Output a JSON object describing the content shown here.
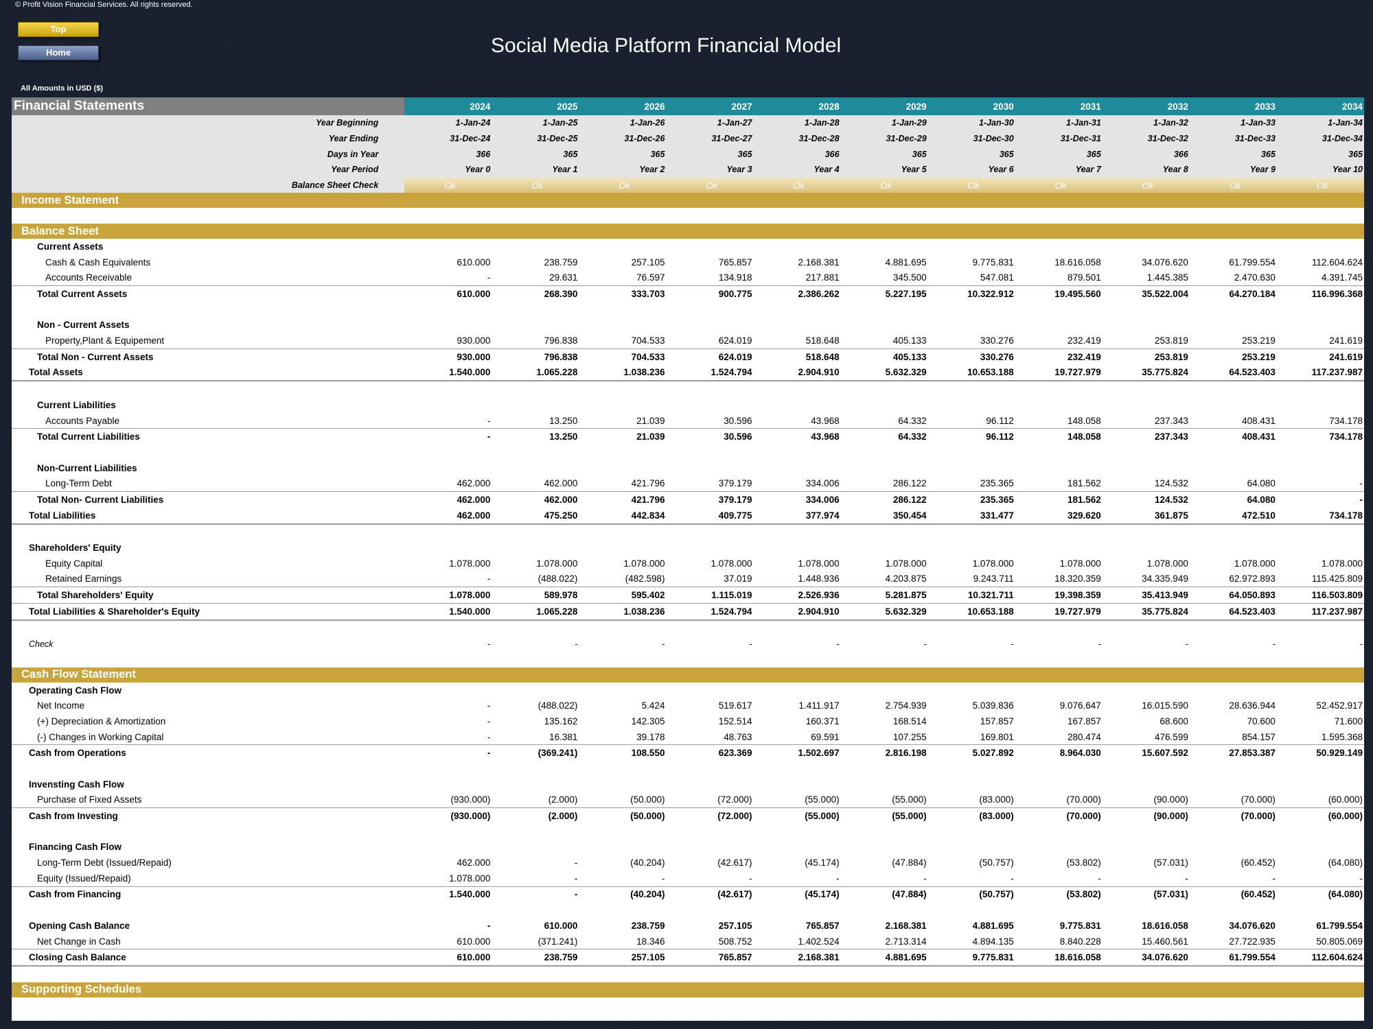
{
  "copyright": "© Profit Vision Financial Services. All rights reserved.",
  "buttons": {
    "top": "Top",
    "home": "Home"
  },
  "title": "Social Media Platform Financial Model",
  "amounts_note": "All Amounts in  USD ($)",
  "header": {
    "label": "Financial Statements",
    "years": [
      "2024",
      "2025",
      "2026",
      "2027",
      "2028",
      "2029",
      "2030",
      "2031",
      "2032",
      "2033",
      "2034"
    ]
  },
  "meta": [
    {
      "label": "Year Beginning",
      "values": [
        "1-Jan-24",
        "1-Jan-25",
        "1-Jan-26",
        "1-Jan-27",
        "1-Jan-28",
        "1-Jan-29",
        "1-Jan-30",
        "1-Jan-31",
        "1-Jan-32",
        "1-Jan-33",
        "1-Jan-34"
      ]
    },
    {
      "label": "Year Ending",
      "values": [
        "31-Dec-24",
        "31-Dec-25",
        "31-Dec-26",
        "31-Dec-27",
        "31-Dec-28",
        "31-Dec-29",
        "31-Dec-30",
        "31-Dec-31",
        "31-Dec-32",
        "31-Dec-33",
        "31-Dec-34"
      ]
    },
    {
      "label": "Days in Year",
      "values": [
        "366",
        "365",
        "365",
        "365",
        "366",
        "365",
        "365",
        "365",
        "366",
        "365",
        "365"
      ]
    },
    {
      "label": "Year Period",
      "values": [
        "Year 0",
        "Year 1",
        "Year 2",
        "Year 3",
        "Year 4",
        "Year 5",
        "Year 6",
        "Year 7",
        "Year 8",
        "Year 9",
        "Year 10"
      ]
    }
  ],
  "balance_check": {
    "label": "Balance Sheet Check",
    "values": [
      "Ok",
      "Ok",
      "Ok",
      "Ok",
      "Ok",
      "Ok",
      "Ok",
      "Ok",
      "Ok",
      "Ok",
      "Ok"
    ]
  },
  "sections": {
    "income": "Income Statement",
    "balance": "Balance Sheet",
    "cashflow": "Cash Flow Statement",
    "supporting": "Supporting Schedules"
  },
  "bs": {
    "current_assets": "Current Assets",
    "cash": {
      "label": "Cash & Cash Equivalents",
      "values": [
        "610.000",
        "238.759",
        "257.105",
        "765.857",
        "2.168.381",
        "4.881.695",
        "9.775.831",
        "18.616.058",
        "34.076.620",
        "61.799.554",
        "112.604.624"
      ]
    },
    "ar": {
      "label": "Accounts Receivable",
      "values": [
        "-",
        "29.631",
        "76.597",
        "134.918",
        "217.881",
        "345.500",
        "547.081",
        "879.501",
        "1.445.385",
        "2.470.630",
        "4.391.745"
      ]
    },
    "total_ca": {
      "label": "Total Current Assets",
      "values": [
        "610.000",
        "268.390",
        "333.703",
        "900.775",
        "2.386.262",
        "5.227.195",
        "10.322.912",
        "19.495.560",
        "35.522.004",
        "64.270.184",
        "116.996.368"
      ]
    },
    "non_current_assets": "Non - Current Assets",
    "ppe": {
      "label": "Property,Plant & Equipement",
      "values": [
        "930.000",
        "796.838",
        "704.533",
        "624.019",
        "518.648",
        "405.133",
        "330.276",
        "232.419",
        "253.819",
        "253.219",
        "241.619"
      ]
    },
    "total_nca": {
      "label": "Total Non - Current Assets",
      "values": [
        "930.000",
        "796.838",
        "704.533",
        "624.019",
        "518.648",
        "405.133",
        "330.276",
        "232.419",
        "253.819",
        "253.219",
        "241.619"
      ]
    },
    "total_assets": {
      "label": "Total Assets",
      "values": [
        "1.540.000",
        "1.065.228",
        "1.038.236",
        "1.524.794",
        "2.904.910",
        "5.632.329",
        "10.653.188",
        "19.727.979",
        "35.775.824",
        "64.523.403",
        "117.237.987"
      ]
    },
    "current_liabilities": "Current Liabilities",
    "ap": {
      "label": "Accounts Payable",
      "values": [
        "-",
        "13.250",
        "21.039",
        "30.596",
        "43.968",
        "64.332",
        "96.112",
        "148.058",
        "237.343",
        "408.431",
        "734.178"
      ]
    },
    "total_cl": {
      "label": "Total Current Liabilities",
      "values": [
        "-",
        "13.250",
        "21.039",
        "30.596",
        "43.968",
        "64.332",
        "96.112",
        "148.058",
        "237.343",
        "408.431",
        "734.178"
      ]
    },
    "non_current_liabilities": "Non-Current Liabilities",
    "ltd": {
      "label": "Long-Term Debt",
      "values": [
        "462.000",
        "462.000",
        "421.796",
        "379.179",
        "334.006",
        "286.122",
        "235.365",
        "181.562",
        "124.532",
        "64.080",
        "-"
      ]
    },
    "total_ncl": {
      "label": "Total Non- Current Liabilities",
      "values": [
        "462.000",
        "462.000",
        "421.796",
        "379.179",
        "334.006",
        "286.122",
        "235.365",
        "181.562",
        "124.532",
        "64.080",
        "-"
      ]
    },
    "total_liabilities": {
      "label": "Total Liabilities",
      "values": [
        "462.000",
        "475.250",
        "442.834",
        "409.775",
        "377.974",
        "350.454",
        "331.477",
        "329.620",
        "361.875",
        "472.510",
        "734.178"
      ]
    },
    "equity": "Shareholders' Equity",
    "equity_capital": {
      "label": "Equity Capital",
      "values": [
        "1.078.000",
        "1.078.000",
        "1.078.000",
        "1.078.000",
        "1.078.000",
        "1.078.000",
        "1.078.000",
        "1.078.000",
        "1.078.000",
        "1.078.000",
        "1.078.000"
      ]
    },
    "retained": {
      "label": "Retained Earnings",
      "values": [
        "-",
        "(488.022)",
        "(482.598)",
        "37.019",
        "1.448.936",
        "4.203.875",
        "9.243.711",
        "18.320.359",
        "34.335.949",
        "62.972.893",
        "115.425.809"
      ]
    },
    "total_equity": {
      "label": "Total Shareholders' Equity",
      "values": [
        "1.078.000",
        "589.978",
        "595.402",
        "1.115.019",
        "2.526.936",
        "5.281.875",
        "10.321.711",
        "19.398.359",
        "35.413.949",
        "64.050.893",
        "116.503.809"
      ]
    },
    "total_le": {
      "label": "Total Liabilities & Shareholder's Equity",
      "values": [
        "1.540.000",
        "1.065.228",
        "1.038.236",
        "1.524.794",
        "2.904.910",
        "5.632.329",
        "10.653.188",
        "19.727.979",
        "35.775.824",
        "64.523.403",
        "117.237.987"
      ]
    },
    "check": {
      "label": "Check",
      "values": [
        "-",
        "-",
        "-",
        "-",
        "-",
        "-",
        "-",
        "-",
        "-",
        "-",
        "-"
      ]
    }
  },
  "cf": {
    "operating": "Operating Cash Flow",
    "net_income": {
      "label": "Net Income",
      "values": [
        "-",
        "(488.022)",
        "5.424",
        "519.617",
        "1.411.917",
        "2.754.939",
        "5.039.836",
        "9.076.647",
        "16.015.590",
        "28.636.944",
        "52.452.917"
      ]
    },
    "da": {
      "label": "(+) Depreciation & Amortization",
      "values": [
        "-",
        "135.162",
        "142.305",
        "152.514",
        "160.371",
        "168.514",
        "157.857",
        "167.857",
        "68.600",
        "70.600",
        "71.600"
      ]
    },
    "wc": {
      "label": "(-) Changes in Working Capital",
      "values": [
        "-",
        "16.381",
        "39.178",
        "48.763",
        "69.591",
        "107.255",
        "169.801",
        "280.474",
        "476.599",
        "854.157",
        "1.595.368"
      ]
    },
    "cfo": {
      "label": "Cash from Operations",
      "values": [
        "-",
        "(369.241)",
        "108.550",
        "623.369",
        "1.502.697",
        "2.816.198",
        "5.027.892",
        "8.964.030",
        "15.607.592",
        "27.853.387",
        "50.929.149"
      ]
    },
    "investing": "Invensting Cash Flow",
    "capex": {
      "label": "Purchase of Fixed Assets",
      "values": [
        "(930.000)",
        "(2.000)",
        "(50.000)",
        "(72.000)",
        "(55.000)",
        "(55.000)",
        "(83.000)",
        "(70.000)",
        "(90.000)",
        "(70.000)",
        "(60.000)"
      ]
    },
    "cfi": {
      "label": "Cash from Investing",
      "values": [
        "(930.000)",
        "(2.000)",
        "(50.000)",
        "(72.000)",
        "(55.000)",
        "(55.000)",
        "(83.000)",
        "(70.000)",
        "(90.000)",
        "(70.000)",
        "(60.000)"
      ]
    },
    "financing": "Financing Cash Flow",
    "debt": {
      "label": "Long-Term Debt (Issued/Repaid)",
      "values": [
        "462.000",
        "-",
        "(40.204)",
        "(42.617)",
        "(45.174)",
        "(47.884)",
        "(50.757)",
        "(53.802)",
        "(57.031)",
        "(60.452)",
        "(64.080)"
      ]
    },
    "equity": {
      "label": "Equity (Issued/Repaid)",
      "values": [
        "1.078.000",
        "-",
        "-",
        "-",
        "-",
        "-",
        "-",
        "-",
        "-",
        "-",
        "-"
      ]
    },
    "cff": {
      "label": "Cash from Financing",
      "values": [
        "1.540.000",
        "-",
        "(40.204)",
        "(42.617)",
        "(45.174)",
        "(47.884)",
        "(50.757)",
        "(53.802)",
        "(57.031)",
        "(60.452)",
        "(64.080)"
      ]
    },
    "opening": {
      "label": "Opening Cash Balance",
      "values": [
        "-",
        "610.000",
        "238.759",
        "257.105",
        "765.857",
        "2.168.381",
        "4.881.695",
        "9.775.831",
        "18.616.058",
        "34.076.620",
        "61.799.554"
      ]
    },
    "net_change": {
      "label": "Net Change in Cash",
      "values": [
        "610.000",
        "(371.241)",
        "18.346",
        "508.752",
        "1.402.524",
        "2.713.314",
        "4.894.135",
        "8.840.228",
        "15.460.561",
        "27.722.935",
        "50.805.069"
      ]
    },
    "closing": {
      "label": "Closing Cash Balance",
      "values": [
        "610.000",
        "238.759",
        "257.105",
        "765.857",
        "2.168.381",
        "4.881.695",
        "9.775.831",
        "18.616.058",
        "34.076.620",
        "61.799.554",
        "112.604.624"
      ]
    }
  }
}
